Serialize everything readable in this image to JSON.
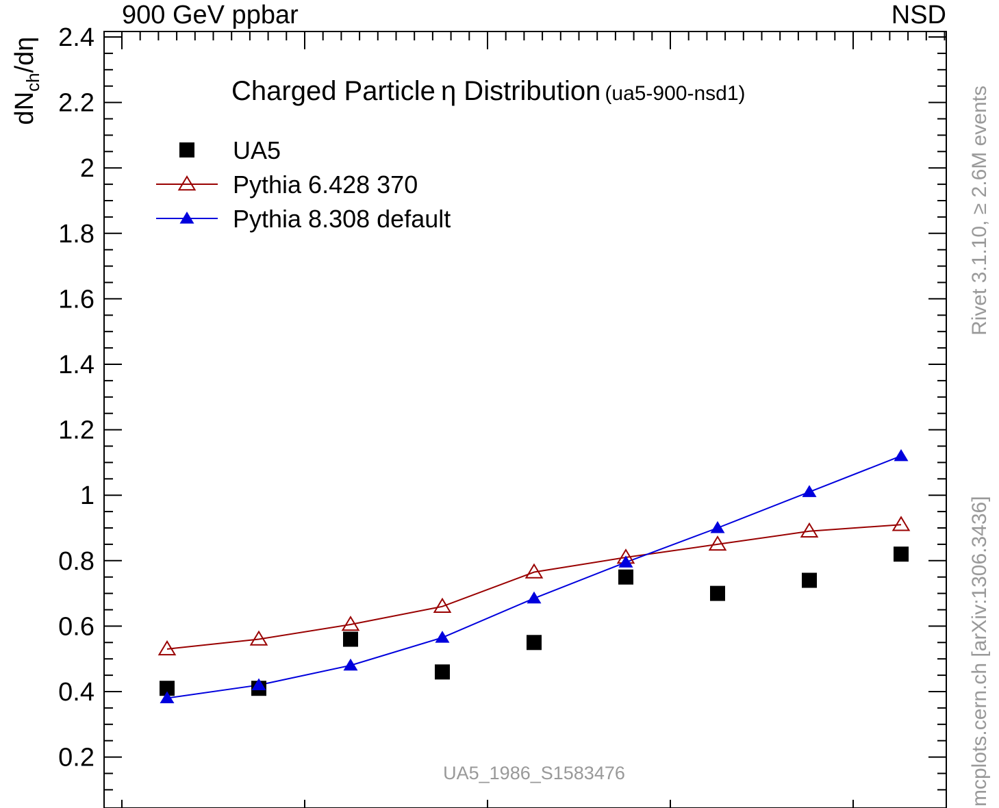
{
  "header": {
    "left": "900 GeV ppbar",
    "right": "NSD"
  },
  "side_labels": {
    "rivet": "Rivet 3.1.10, ≥ 2.6M events",
    "mcplots": "mcplots.cern.ch [arXiv:1306.3436]"
  },
  "watermark": "UA5_1986_S1583476",
  "chart_data": {
    "type": "scatter",
    "title": "Charged Particle",
    "title_symbol": "η",
    "title_rest": " Distribution",
    "subtitle": "(ua5-900-nsd1)",
    "ylabel": {
      "main": "dN",
      "sub": "ch",
      "rest": "/dη"
    },
    "xlabel": "",
    "xlim": [
      0,
      10
    ],
    "ylim": [
      0.1,
      2.4
    ],
    "y_ticks": [
      "0.2",
      "0.4",
      "0.6",
      "0.8",
      "1",
      "1.2",
      "1.4",
      "1.6",
      "1.8",
      "2",
      "2.2",
      "2.4"
    ],
    "y_tick_values": [
      0.2,
      0.4,
      0.6,
      0.8,
      1.0,
      1.2,
      1.4,
      1.6,
      1.8,
      2.0,
      2.2,
      2.4
    ],
    "grid": false,
    "legend_position": "top-left",
    "x": [
      0.5,
      1.5,
      2.5,
      3.5,
      4.5,
      5.5,
      6.5,
      7.5,
      8.5
    ],
    "series": [
      {
        "name": "UA5",
        "marker": "square",
        "color": "#000000",
        "values": [
          0.41,
          0.41,
          0.56,
          0.46,
          0.55,
          0.75,
          0.7,
          0.74,
          0.82
        ]
      },
      {
        "name": "Pythia 6.428 370",
        "marker": "open-triangle",
        "color": "#990000",
        "values": [
          0.53,
          0.56,
          0.605,
          0.66,
          0.765,
          0.81,
          0.85,
          0.89,
          0.91
        ]
      },
      {
        "name": "Pythia 8.308 default",
        "marker": "filled-triangle",
        "color": "#0000dd",
        "values": [
          0.38,
          0.42,
          0.48,
          0.565,
          0.685,
          0.795,
          0.9,
          1.01,
          1.12
        ]
      }
    ]
  }
}
